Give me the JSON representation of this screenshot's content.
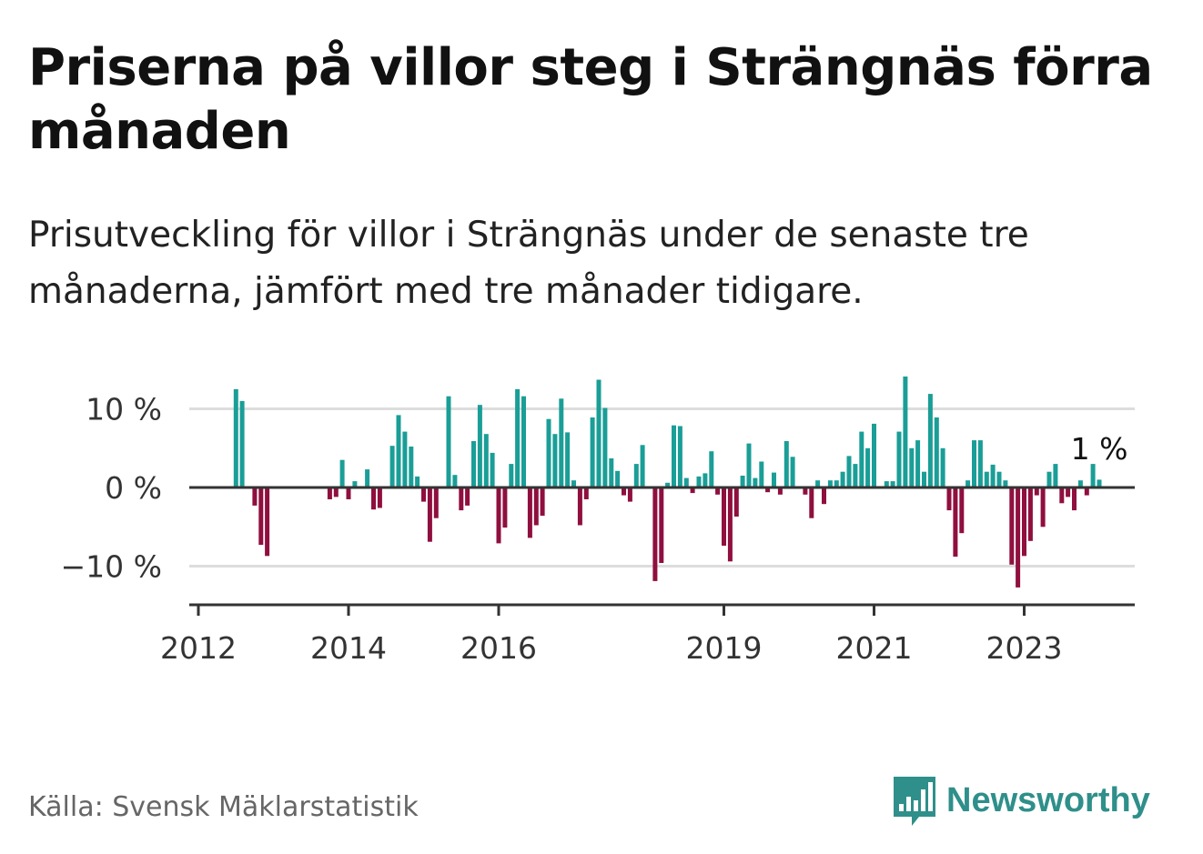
{
  "title": "Priserna på villor steg i Strängnäs förra månaden",
  "subtitle": "Prisutveckling för villor i Strängnäs under de senaste tre månaderna, jämfört med tre månader tidigare.",
  "source": "Källa: Svensk Mäklarstatistik",
  "logo": {
    "text": "Newsworthy",
    "icon": "bar-chart-speech-bubble-icon"
  },
  "colors": {
    "positive": "#1a9e97",
    "negative": "#8f0f3e",
    "axis": "#333333",
    "grid": "#dddddd",
    "text": "#333333",
    "brand": "#2f8f8a"
  },
  "chart_data": {
    "type": "bar",
    "title": "",
    "xlabel": "",
    "ylabel": "",
    "ylim": [
      -15,
      15
    ],
    "y_ticks": [
      {
        "value": 10,
        "label": "10 %"
      },
      {
        "value": 0,
        "label": "0 %"
      },
      {
        "value": -10,
        "label": "−10 %"
      }
    ],
    "x_ticks": [
      "2012",
      "2014",
      "2016",
      "2019",
      "2021",
      "2023"
    ],
    "grid": true,
    "last_label": "1 %",
    "series": [
      {
        "values": [
          {
            "date": "2012-07",
            "value": 12.5
          },
          {
            "date": "2012-08",
            "value": 11
          },
          {
            "date": "2012-10",
            "value": -2.3
          },
          {
            "date": "2012-11",
            "value": -7.3
          },
          {
            "date": "2012-12",
            "value": -8.7
          },
          {
            "date": "2013-10",
            "value": -1.5
          },
          {
            "date": "2013-11",
            "value": -1.2
          },
          {
            "date": "2013-12",
            "value": 3.5
          },
          {
            "date": "2014-01",
            "value": -1.5
          },
          {
            "date": "2014-02",
            "value": 0.8
          },
          {
            "date": "2014-04",
            "value": 2.3
          },
          {
            "date": "2014-05",
            "value": -2.8
          },
          {
            "date": "2014-06",
            "value": -2.6
          },
          {
            "date": "2014-08",
            "value": 5.3
          },
          {
            "date": "2014-09",
            "value": 9.2
          },
          {
            "date": "2014-10",
            "value": 7.1
          },
          {
            "date": "2014-11",
            "value": 5.2
          },
          {
            "date": "2014-12",
            "value": 1.4
          },
          {
            "date": "2015-01",
            "value": -1.8
          },
          {
            "date": "2015-02",
            "value": -6.9
          },
          {
            "date": "2015-03",
            "value": -3.9
          },
          {
            "date": "2015-05",
            "value": 11.6
          },
          {
            "date": "2015-06",
            "value": 1.6
          },
          {
            "date": "2015-07",
            "value": -2.9
          },
          {
            "date": "2015-08",
            "value": -2.3
          },
          {
            "date": "2015-09",
            "value": 5.9
          },
          {
            "date": "2015-10",
            "value": 10.5
          },
          {
            "date": "2015-11",
            "value": 6.8
          },
          {
            "date": "2015-12",
            "value": 4.4
          },
          {
            "date": "2016-01",
            "value": -7.1
          },
          {
            "date": "2016-02",
            "value": -5.1
          },
          {
            "date": "2016-03",
            "value": 3.0
          },
          {
            "date": "2016-04",
            "value": 12.5
          },
          {
            "date": "2016-05",
            "value": 11.6
          },
          {
            "date": "2016-06",
            "value": -6.4
          },
          {
            "date": "2016-07",
            "value": -4.8
          },
          {
            "date": "2016-08",
            "value": -3.6
          },
          {
            "date": "2016-09",
            "value": 8.7
          },
          {
            "date": "2016-10",
            "value": 6.8
          },
          {
            "date": "2016-11",
            "value": 11.3
          },
          {
            "date": "2016-12",
            "value": 7.0
          },
          {
            "date": "2017-01",
            "value": 0.9
          },
          {
            "date": "2017-02",
            "value": -4.8
          },
          {
            "date": "2017-03",
            "value": -1.5
          },
          {
            "date": "2017-04",
            "value": 8.9
          },
          {
            "date": "2017-05",
            "value": 13.7
          },
          {
            "date": "2017-06",
            "value": 10.1
          },
          {
            "date": "2017-07",
            "value": 3.7
          },
          {
            "date": "2017-08",
            "value": 2.1
          },
          {
            "date": "2017-09",
            "value": -1.0
          },
          {
            "date": "2017-10",
            "value": -1.8
          },
          {
            "date": "2017-11",
            "value": 3.0
          },
          {
            "date": "2017-12",
            "value": 5.4
          },
          {
            "date": "2018-02",
            "value": -11.9
          },
          {
            "date": "2018-03",
            "value": -9.6
          },
          {
            "date": "2018-04",
            "value": 0.6
          },
          {
            "date": "2018-05",
            "value": 7.9
          },
          {
            "date": "2018-06",
            "value": 7.8
          },
          {
            "date": "2018-07",
            "value": 1.2
          },
          {
            "date": "2018-08",
            "value": -0.7
          },
          {
            "date": "2018-09",
            "value": 1.4
          },
          {
            "date": "2018-10",
            "value": 1.8
          },
          {
            "date": "2018-11",
            "value": 4.6
          },
          {
            "date": "2018-12",
            "value": -0.9
          },
          {
            "date": "2019-01",
            "value": -7.4
          },
          {
            "date": "2019-02",
            "value": -9.4
          },
          {
            "date": "2019-03",
            "value": -3.7
          },
          {
            "date": "2019-04",
            "value": 1.5
          },
          {
            "date": "2019-05",
            "value": 5.6
          },
          {
            "date": "2019-06",
            "value": 1.2
          },
          {
            "date": "2019-07",
            "value": 3.3
          },
          {
            "date": "2019-08",
            "value": -0.6
          },
          {
            "date": "2019-09",
            "value": 1.9
          },
          {
            "date": "2019-10",
            "value": -0.9
          },
          {
            "date": "2019-11",
            "value": 5.9
          },
          {
            "date": "2019-12",
            "value": 3.9
          },
          {
            "date": "2020-02",
            "value": -0.9
          },
          {
            "date": "2020-03",
            "value": -3.9
          },
          {
            "date": "2020-04",
            "value": 0.9
          },
          {
            "date": "2020-05",
            "value": -2.1
          },
          {
            "date": "2020-06",
            "value": 0.9
          },
          {
            "date": "2020-07",
            "value": 0.9
          },
          {
            "date": "2020-08",
            "value": 2.0
          },
          {
            "date": "2020-09",
            "value": 4.0
          },
          {
            "date": "2020-10",
            "value": 3.0
          },
          {
            "date": "2020-11",
            "value": 7.1
          },
          {
            "date": "2020-12",
            "value": 5.0
          },
          {
            "date": "2021-01",
            "value": 8.1
          },
          {
            "date": "2021-03",
            "value": 0.8
          },
          {
            "date": "2021-04",
            "value": 0.8
          },
          {
            "date": "2021-05",
            "value": 7.1
          },
          {
            "date": "2021-06",
            "value": 14.1
          },
          {
            "date": "2021-07",
            "value": 5.0
          },
          {
            "date": "2021-08",
            "value": 6.0
          },
          {
            "date": "2021-09",
            "value": 2.0
          },
          {
            "date": "2021-10",
            "value": 11.9
          },
          {
            "date": "2021-11",
            "value": 8.9
          },
          {
            "date": "2021-12",
            "value": 5.0
          },
          {
            "date": "2022-01",
            "value": -2.9
          },
          {
            "date": "2022-02",
            "value": -8.8
          },
          {
            "date": "2022-03",
            "value": -5.8
          },
          {
            "date": "2022-04",
            "value": 0.9
          },
          {
            "date": "2022-05",
            "value": 6.0
          },
          {
            "date": "2022-06",
            "value": 6.0
          },
          {
            "date": "2022-07",
            "value": 2.0
          },
          {
            "date": "2022-08",
            "value": 2.9
          },
          {
            "date": "2022-09",
            "value": 2.0
          },
          {
            "date": "2022-10",
            "value": 0.9
          },
          {
            "date": "2022-11",
            "value": -9.8
          },
          {
            "date": "2022-12",
            "value": -12.7
          },
          {
            "date": "2023-01",
            "value": -8.7
          },
          {
            "date": "2023-02",
            "value": -6.8
          },
          {
            "date": "2023-03",
            "value": -1.0
          },
          {
            "date": "2023-04",
            "value": -5.0
          },
          {
            "date": "2023-05",
            "value": 2.0
          },
          {
            "date": "2023-06",
            "value": 3.0
          },
          {
            "date": "2023-07",
            "value": -2.0
          },
          {
            "date": "2023-08",
            "value": -1.2
          },
          {
            "date": "2023-09",
            "value": -2.9
          },
          {
            "date": "2023-10",
            "value": 0.9
          },
          {
            "date": "2023-11",
            "value": -1.0
          },
          {
            "date": "2023-12",
            "value": 3.0
          },
          {
            "date": "2024-01",
            "value": 1.0
          }
        ]
      }
    ]
  }
}
